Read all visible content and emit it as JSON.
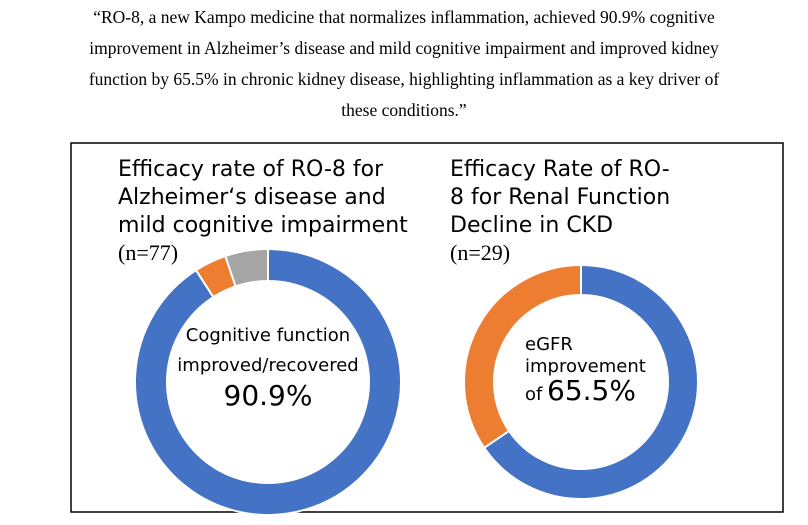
{
  "quote": [
    "“RO-8, a new Kampo medicine that normalizes inflammation, achieved 90.9% cognitive",
    "improvement in Alzheimer’s disease and mild cognitive impairment and improved kidney",
    "function by 65.5% in chronic kidney disease, highlighting inflammation as a key driver of",
    "these conditions.”"
  ],
  "chart_data": [
    {
      "type": "pie",
      "title": [
        "Efficacy rate of RO-8 for",
        "Alzheimer‘s disease and",
        "mild cognitive impairment"
      ],
      "subtitle": "(n=77)",
      "values": [
        90.9,
        3.9,
        5.2
      ],
      "value_labels": [
        "90.9%",
        null,
        null
      ],
      "colors": [
        "#4472c4",
        "#ed7d31",
        "#a5a5a5"
      ],
      "center_lines": [
        "Cognitive function",
        "improved/recovered"
      ]
    },
    {
      "type": "pie",
      "title": [
        "Efficacy Rate of RO-",
        "8 for Renal Function",
        "Decline in CKD"
      ],
      "subtitle": "(n=29)",
      "values": [
        65.5,
        34.5
      ],
      "value_labels": [
        "65.5%",
        null
      ],
      "colors": [
        "#4472c4",
        "#ed7d31"
      ],
      "center_lines": [
        "eGFR",
        "improvement",
        "of"
      ]
    }
  ]
}
